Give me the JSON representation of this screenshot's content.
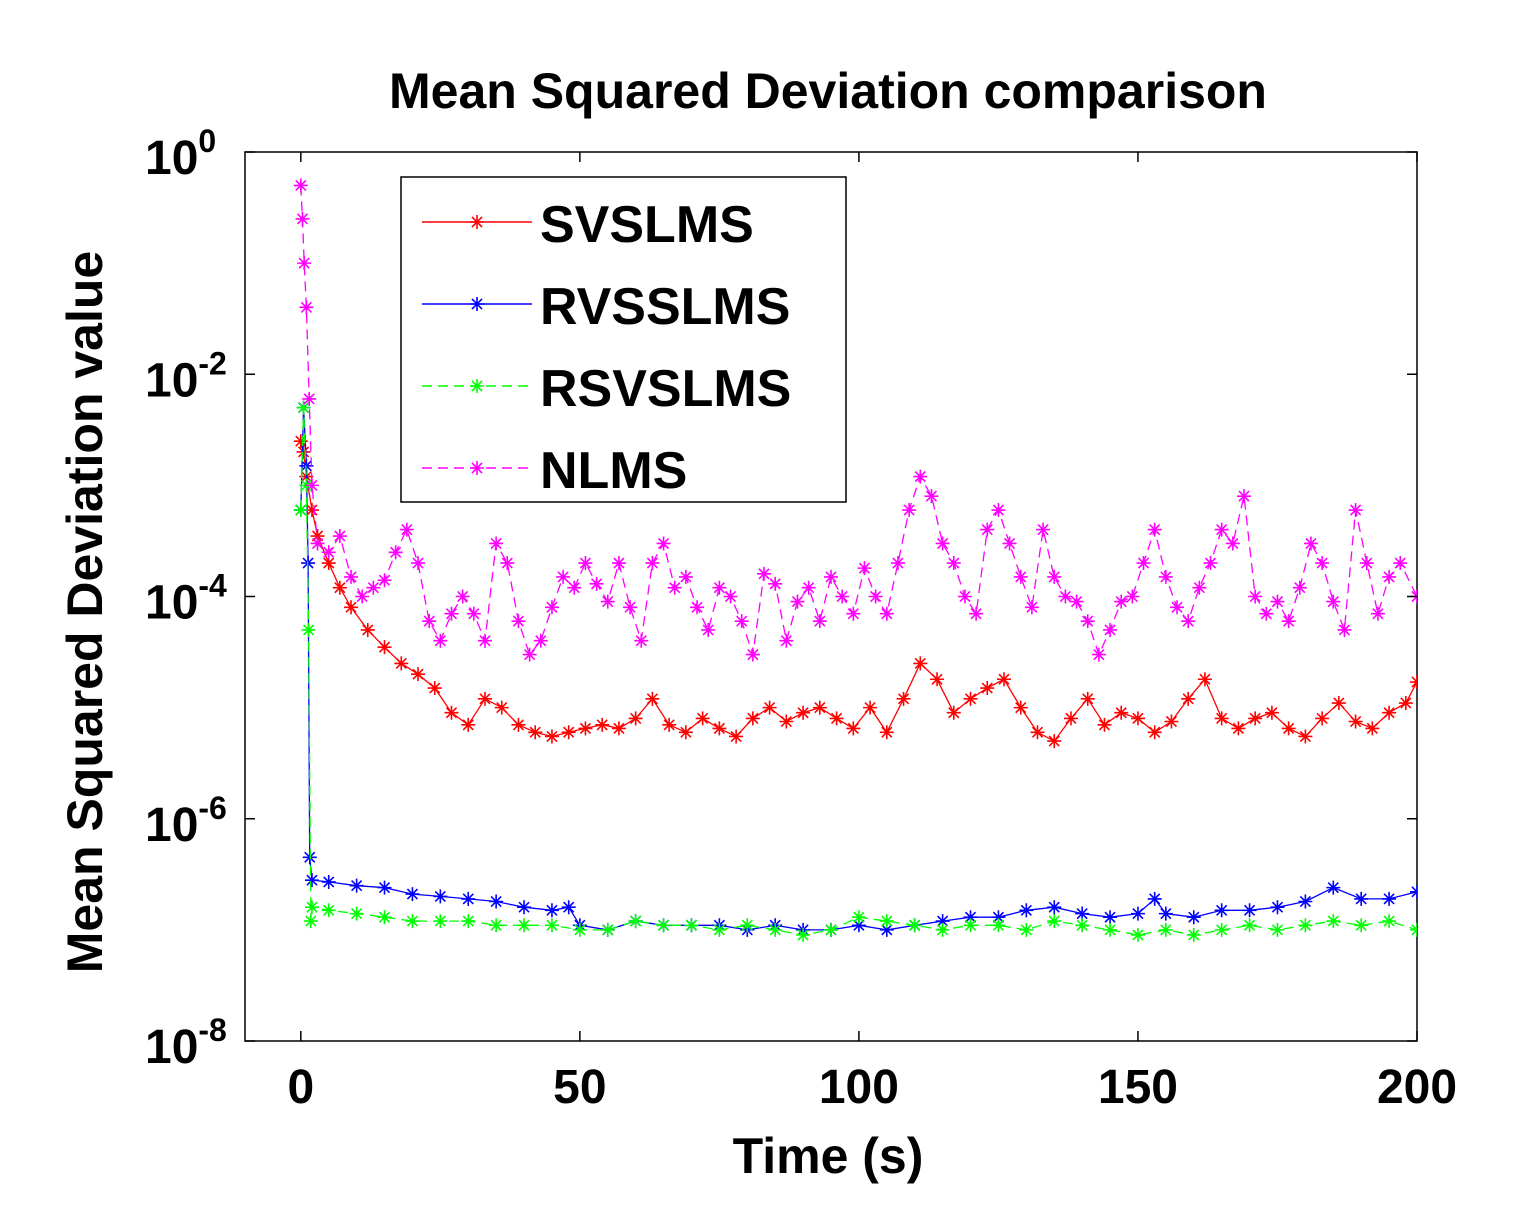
{
  "chart_data": {
    "type": "line",
    "title": "Mean Squared Deviation comparison",
    "xlabel": "Time (s)",
    "ylabel": "Mean Squared Deviation value",
    "xlim": [
      -10,
      200
    ],
    "ylim_exponent": [
      -8,
      0
    ],
    "yscale": "log",
    "x_ticks": [
      0,
      50,
      100,
      150,
      200
    ],
    "y_ticks": [
      {
        "base": "10",
        "exp": "0"
      },
      {
        "base": "10",
        "exp": "-2"
      },
      {
        "base": "10",
        "exp": "-4"
      },
      {
        "base": "10",
        "exp": "-6"
      },
      {
        "base": "10",
        "exp": "-8"
      }
    ],
    "legend_position": "top-left",
    "grid": false,
    "series": [
      {
        "name": "SVSLMS",
        "color": "#ff0000",
        "dash": "solid",
        "points": [
          [
            0,
            0.0025
          ],
          [
            0.5,
            0.002
          ],
          [
            1,
            0.0012
          ],
          [
            2,
            0.0006
          ],
          [
            3,
            0.00035
          ],
          [
            5,
            0.0002
          ],
          [
            7,
            0.00012
          ],
          [
            9,
            8e-05
          ],
          [
            12,
            5e-05
          ],
          [
            15,
            3.5e-05
          ],
          [
            18,
            2.5e-05
          ],
          [
            21,
            2e-05
          ],
          [
            24,
            1.5e-05
          ],
          [
            27,
            9e-06
          ],
          [
            30,
            7e-06
          ],
          [
            33,
            1.2e-05
          ],
          [
            36,
            1e-05
          ],
          [
            39,
            7e-06
          ],
          [
            42,
            6e-06
          ],
          [
            45,
            5.5e-06
          ],
          [
            48,
            6e-06
          ],
          [
            51,
            6.5e-06
          ],
          [
            54,
            7e-06
          ],
          [
            57,
            6.5e-06
          ],
          [
            60,
            8e-06
          ],
          [
            63,
            1.2e-05
          ],
          [
            66,
            7e-06
          ],
          [
            69,
            6e-06
          ],
          [
            72,
            8e-06
          ],
          [
            75,
            6.5e-06
          ],
          [
            78,
            5.5e-06
          ],
          [
            81,
            8e-06
          ],
          [
            84,
            1e-05
          ],
          [
            87,
            7.5e-06
          ],
          [
            90,
            9e-06
          ],
          [
            93,
            1e-05
          ],
          [
            96,
            8e-06
          ],
          [
            99,
            6.5e-06
          ],
          [
            102,
            1e-05
          ],
          [
            105,
            6e-06
          ],
          [
            108,
            1.2e-05
          ],
          [
            111,
            2.5e-05
          ],
          [
            114,
            1.8e-05
          ],
          [
            117,
            9e-06
          ],
          [
            120,
            1.2e-05
          ],
          [
            123,
            1.5e-05
          ],
          [
            126,
            1.8e-05
          ],
          [
            129,
            1e-05
          ],
          [
            132,
            6e-06
          ],
          [
            135,
            5e-06
          ],
          [
            138,
            8e-06
          ],
          [
            141,
            1.2e-05
          ],
          [
            144,
            7e-06
          ],
          [
            147,
            9e-06
          ],
          [
            150,
            8e-06
          ],
          [
            153,
            6e-06
          ],
          [
            156,
            7.5e-06
          ],
          [
            159,
            1.2e-05
          ],
          [
            162,
            1.8e-05
          ],
          [
            165,
            8e-06
          ],
          [
            168,
            6.5e-06
          ],
          [
            171,
            8e-06
          ],
          [
            174,
            9e-06
          ],
          [
            177,
            6.5e-06
          ],
          [
            180,
            5.5e-06
          ],
          [
            183,
            8e-06
          ],
          [
            186,
            1.1e-05
          ],
          [
            189,
            7.5e-06
          ],
          [
            192,
            6.5e-06
          ],
          [
            195,
            9e-06
          ],
          [
            198,
            1.1e-05
          ],
          [
            200,
            1.7e-05
          ]
        ]
      },
      {
        "name": "RVSSLMS",
        "color": "#0000ff",
        "dash": "solid",
        "points": [
          [
            0,
            0.0006
          ],
          [
            0.5,
            0.005
          ],
          [
            1,
            0.0015
          ],
          [
            1.3,
            0.0002
          ],
          [
            1.6,
            4.5e-07
          ],
          [
            2,
            2.8e-07
          ],
          [
            5,
            2.7e-07
          ],
          [
            10,
            2.5e-07
          ],
          [
            15,
            2.4e-07
          ],
          [
            20,
            2.1e-07
          ],
          [
            25,
            2e-07
          ],
          [
            30,
            1.9e-07
          ],
          [
            35,
            1.8e-07
          ],
          [
            40,
            1.6e-07
          ],
          [
            45,
            1.5e-07
          ],
          [
            48,
            1.6e-07
          ],
          [
            50,
            1.1e-07
          ],
          [
            55,
            1e-07
          ],
          [
            60,
            1.2e-07
          ],
          [
            65,
            1.1e-07
          ],
          [
            70,
            1.1e-07
          ],
          [
            75,
            1.1e-07
          ],
          [
            80,
            1e-07
          ],
          [
            85,
            1.1e-07
          ],
          [
            90,
            1e-07
          ],
          [
            95,
            1e-07
          ],
          [
            100,
            1.1e-07
          ],
          [
            105,
            1e-07
          ],
          [
            110,
            1.1e-07
          ],
          [
            115,
            1.2e-07
          ],
          [
            120,
            1.3e-07
          ],
          [
            125,
            1.3e-07
          ],
          [
            130,
            1.5e-07
          ],
          [
            135,
            1.6e-07
          ],
          [
            140,
            1.4e-07
          ],
          [
            145,
            1.3e-07
          ],
          [
            150,
            1.4e-07
          ],
          [
            153,
            1.9e-07
          ],
          [
            155,
            1.4e-07
          ],
          [
            160,
            1.3e-07
          ],
          [
            165,
            1.5e-07
          ],
          [
            170,
            1.5e-07
          ],
          [
            175,
            1.6e-07
          ],
          [
            180,
            1.8e-07
          ],
          [
            185,
            2.4e-07
          ],
          [
            190,
            1.9e-07
          ],
          [
            195,
            1.9e-07
          ],
          [
            200,
            2.2e-07
          ]
        ]
      },
      {
        "name": "RSVSLMS",
        "color": "#00ff00",
        "dash": "dashed",
        "points": [
          [
            0,
            0.0006
          ],
          [
            0.5,
            0.005
          ],
          [
            1,
            0.001
          ],
          [
            1.4,
            5e-05
          ],
          [
            1.8,
            1.2e-07
          ],
          [
            2,
            1.6e-07
          ],
          [
            5,
            1.5e-07
          ],
          [
            10,
            1.4e-07
          ],
          [
            15,
            1.3e-07
          ],
          [
            20,
            1.2e-07
          ],
          [
            25,
            1.2e-07
          ],
          [
            30,
            1.2e-07
          ],
          [
            35,
            1.1e-07
          ],
          [
            40,
            1.1e-07
          ],
          [
            45,
            1.1e-07
          ],
          [
            50,
            1e-07
          ],
          [
            55,
            1e-07
          ],
          [
            60,
            1.2e-07
          ],
          [
            65,
            1.1e-07
          ],
          [
            70,
            1.1e-07
          ],
          [
            75,
            1e-07
          ],
          [
            80,
            1.1e-07
          ],
          [
            85,
            1e-07
          ],
          [
            90,
            9e-08
          ],
          [
            95,
            1e-07
          ],
          [
            100,
            1.3e-07
          ],
          [
            105,
            1.2e-07
          ],
          [
            110,
            1.1e-07
          ],
          [
            115,
            1e-07
          ],
          [
            120,
            1.1e-07
          ],
          [
            125,
            1.1e-07
          ],
          [
            130,
            1e-07
          ],
          [
            135,
            1.2e-07
          ],
          [
            140,
            1.1e-07
          ],
          [
            145,
            1e-07
          ],
          [
            150,
            9e-08
          ],
          [
            155,
            1e-07
          ],
          [
            160,
            9e-08
          ],
          [
            165,
            1e-07
          ],
          [
            170,
            1.1e-07
          ],
          [
            175,
            1e-07
          ],
          [
            180,
            1.1e-07
          ],
          [
            185,
            1.2e-07
          ],
          [
            190,
            1.1e-07
          ],
          [
            195,
            1.2e-07
          ],
          [
            200,
            1e-07
          ]
        ]
      },
      {
        "name": "NLMS",
        "color": "#ff00ff",
        "dash": "dashed",
        "points": [
          [
            0,
            0.5
          ],
          [
            0.3,
            0.25
          ],
          [
            0.6,
            0.1
          ],
          [
            1,
            0.04
          ],
          [
            1.5,
            0.006
          ],
          [
            2,
            0.001
          ],
          [
            3,
            0.0003
          ],
          [
            5,
            0.00025
          ],
          [
            7,
            0.00035
          ],
          [
            9,
            0.00015
          ],
          [
            11,
            0.0001
          ],
          [
            13,
            0.00012
          ],
          [
            15,
            0.00014
          ],
          [
            17,
            0.00025
          ],
          [
            19,
            0.0004
          ],
          [
            21,
            0.0002
          ],
          [
            23,
            6e-05
          ],
          [
            25,
            4e-05
          ],
          [
            27,
            7e-05
          ],
          [
            29,
            0.0001
          ],
          [
            31,
            7e-05
          ],
          [
            33,
            4e-05
          ],
          [
            35,
            0.0003
          ],
          [
            37,
            0.0002
          ],
          [
            39,
            6e-05
          ],
          [
            41,
            3e-05
          ],
          [
            43,
            4e-05
          ],
          [
            45,
            8e-05
          ],
          [
            47,
            0.00015
          ],
          [
            49,
            0.00012
          ],
          [
            51,
            0.0002
          ],
          [
            53,
            0.00013
          ],
          [
            55,
            9e-05
          ],
          [
            57,
            0.0002
          ],
          [
            59,
            8e-05
          ],
          [
            61,
            4e-05
          ],
          [
            63,
            0.0002
          ],
          [
            65,
            0.0003
          ],
          [
            67,
            0.00012
          ],
          [
            69,
            0.00015
          ],
          [
            71,
            8e-05
          ],
          [
            73,
            5e-05
          ],
          [
            75,
            0.00012
          ],
          [
            77,
            0.0001
          ],
          [
            79,
            6e-05
          ],
          [
            81,
            3e-05
          ],
          [
            83,
            0.00016
          ],
          [
            85,
            0.00013
          ],
          [
            87,
            4e-05
          ],
          [
            89,
            9e-05
          ],
          [
            91,
            0.00012
          ],
          [
            93,
            6e-05
          ],
          [
            95,
            0.00015
          ],
          [
            97,
            0.0001
          ],
          [
            99,
            7e-05
          ],
          [
            101,
            0.00018
          ],
          [
            103,
            0.0001
          ],
          [
            105,
            7e-05
          ],
          [
            107,
            0.0002
          ],
          [
            109,
            0.0006
          ],
          [
            111,
            0.0012
          ],
          [
            113,
            0.0008
          ],
          [
            115,
            0.0003
          ],
          [
            117,
            0.0002
          ],
          [
            119,
            0.0001
          ],
          [
            121,
            7e-05
          ],
          [
            123,
            0.0004
          ],
          [
            125,
            0.0006
          ],
          [
            127,
            0.0003
          ],
          [
            129,
            0.00015
          ],
          [
            131,
            8e-05
          ],
          [
            133,
            0.0004
          ],
          [
            135,
            0.00015
          ],
          [
            137,
            0.0001
          ],
          [
            139,
            9e-05
          ],
          [
            141,
            6e-05
          ],
          [
            143,
            3e-05
          ],
          [
            145,
            5e-05
          ],
          [
            147,
            9e-05
          ],
          [
            149,
            0.0001
          ],
          [
            151,
            0.0002
          ],
          [
            153,
            0.0004
          ],
          [
            155,
            0.00015
          ],
          [
            157,
            8e-05
          ],
          [
            159,
            6e-05
          ],
          [
            161,
            0.00012
          ],
          [
            163,
            0.0002
          ],
          [
            165,
            0.0004
          ],
          [
            167,
            0.0003
          ],
          [
            169,
            0.0008
          ],
          [
            171,
            0.0001
          ],
          [
            173,
            7e-05
          ],
          [
            175,
            9e-05
          ],
          [
            177,
            6e-05
          ],
          [
            179,
            0.00012
          ],
          [
            181,
            0.0003
          ],
          [
            183,
            0.0002
          ],
          [
            185,
            9e-05
          ],
          [
            187,
            5e-05
          ],
          [
            189,
            0.0006
          ],
          [
            191,
            0.0002
          ],
          [
            193,
            7e-05
          ],
          [
            195,
            0.00015
          ],
          [
            197,
            0.0002
          ],
          [
            200,
            0.0001
          ]
        ]
      }
    ]
  }
}
